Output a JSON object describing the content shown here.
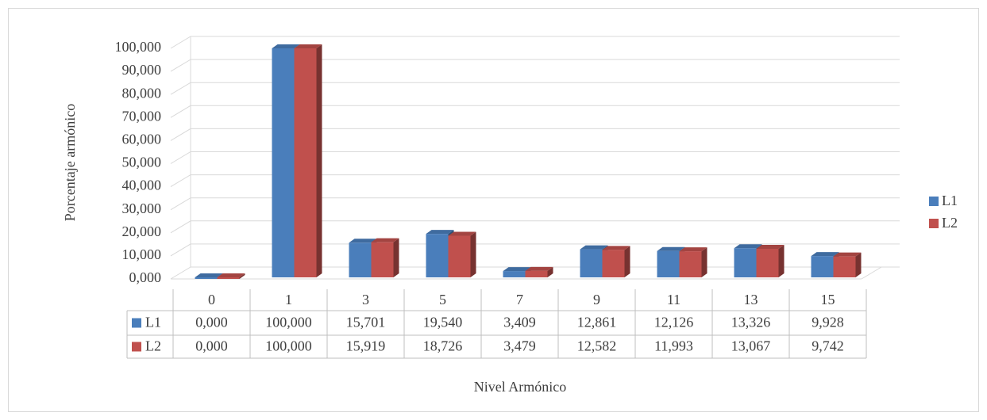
{
  "chart_data": {
    "type": "bar3d",
    "x_label": "Nivel Armónico",
    "y_label": "Porcentaje armónico",
    "categories": [
      "0",
      "1",
      "3",
      "5",
      "7",
      "9",
      "11",
      "13",
      "15"
    ],
    "series": [
      {
        "name": "L1",
        "color": "#4a7ebb",
        "values": [
          0,
          100,
          15.701,
          19.54,
          3.409,
          12.861,
          12.126,
          13.326,
          9.928
        ],
        "value_labels": [
          "0,000",
          "100,000",
          "15,701",
          "19,540",
          "3,409",
          "12,861",
          "12,126",
          "13,326",
          "9,928"
        ]
      },
      {
        "name": "L2",
        "color": "#c0504d",
        "values": [
          0,
          100,
          15.919,
          18.726,
          3.479,
          12.582,
          11.993,
          13.067,
          9.742
        ],
        "value_labels": [
          "0,000",
          "100,000",
          "15,919",
          "18,726",
          "3,479",
          "12,582",
          "11,993",
          "13,067",
          "9,742"
        ]
      }
    ],
    "ylim": [
      0,
      100
    ],
    "yticks": [
      {
        "value": 0,
        "label": "0,000"
      },
      {
        "value": 10,
        "label": "10,000"
      },
      {
        "value": 20,
        "label": "20,000"
      },
      {
        "value": 30,
        "label": "30,000"
      },
      {
        "value": 40,
        "label": "40,000"
      },
      {
        "value": 50,
        "label": "50,000"
      },
      {
        "value": 60,
        "label": "60,000"
      },
      {
        "value": 70,
        "label": "70,000"
      },
      {
        "value": 80,
        "label": "80,000"
      },
      {
        "value": 90,
        "label": "90,000"
      },
      {
        "value": 100,
        "label": "100,000"
      }
    ],
    "grid": true,
    "legend": "right",
    "data_table": true
  }
}
